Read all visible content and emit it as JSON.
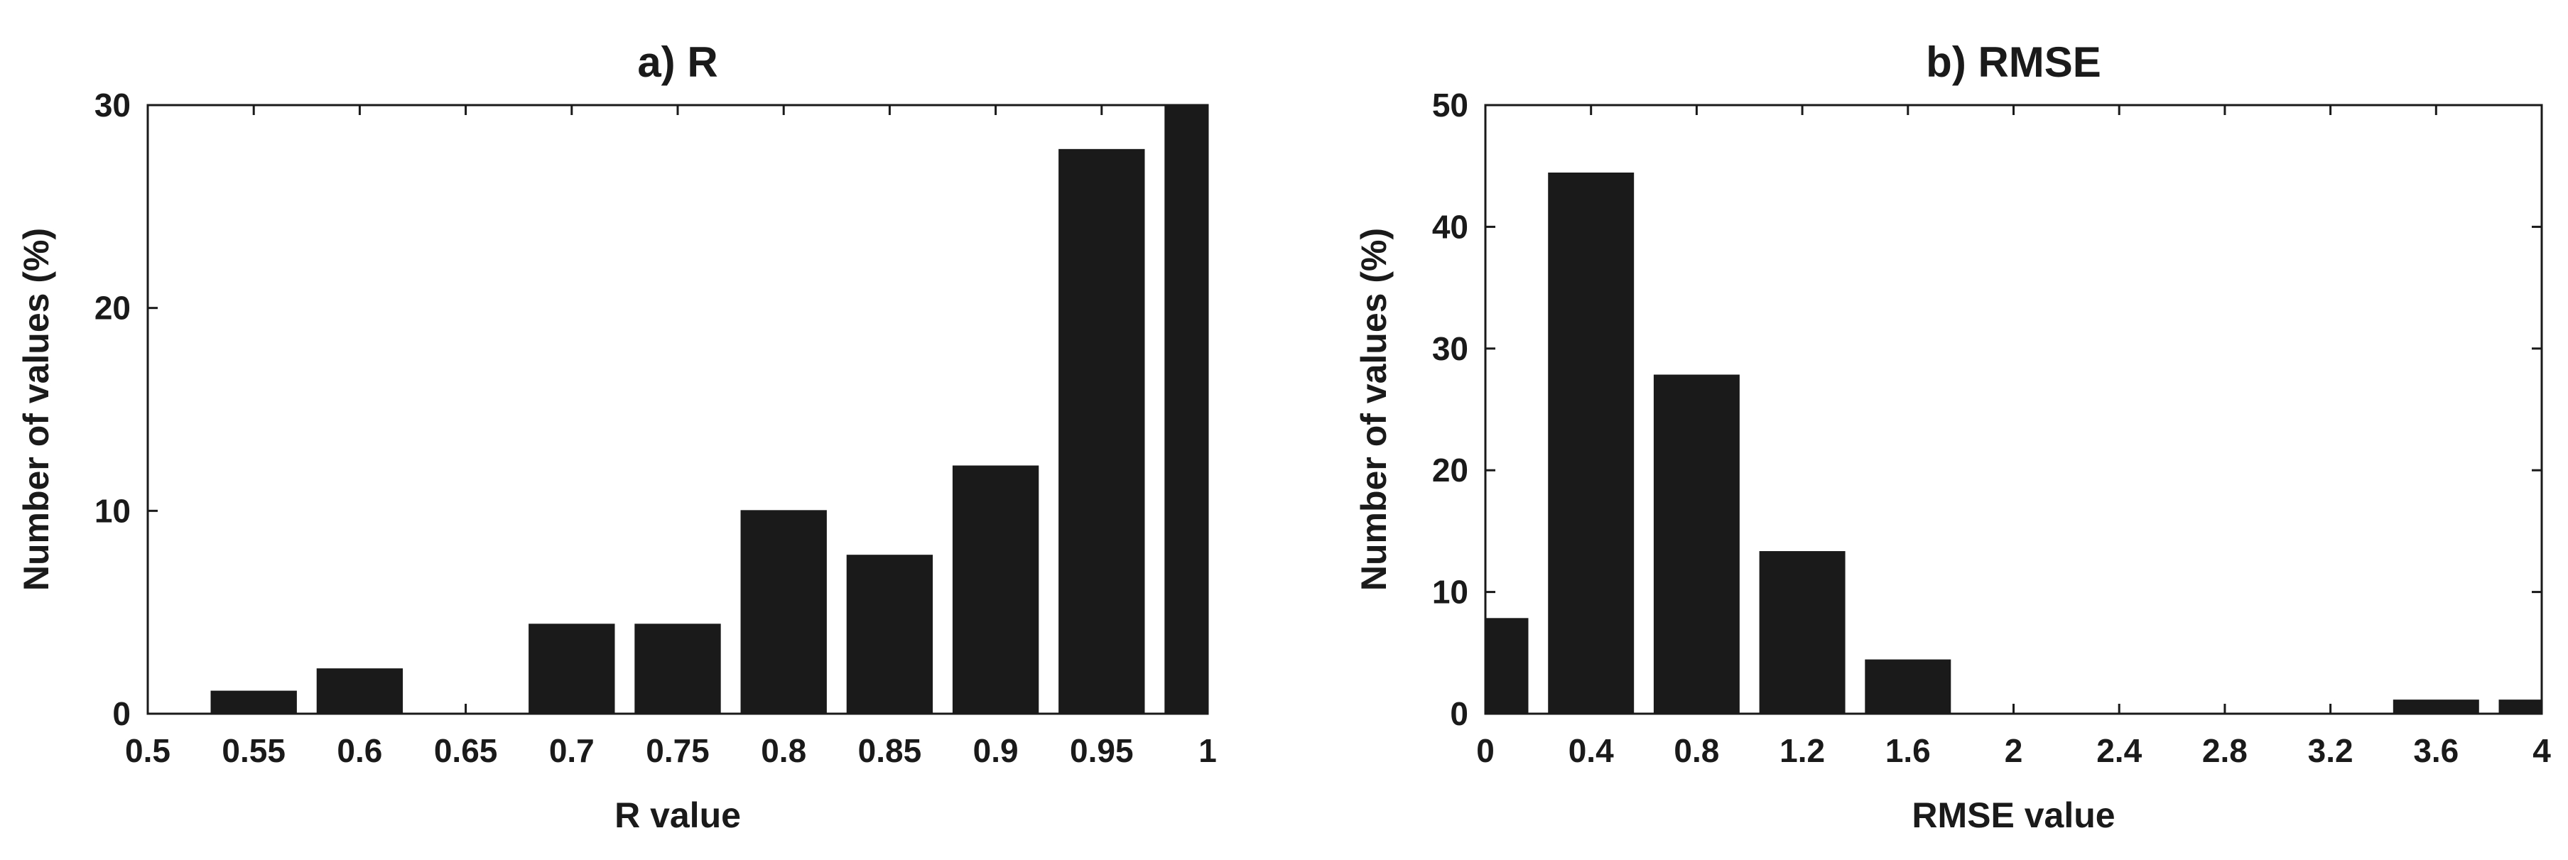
{
  "chart_data": [
    {
      "type": "bar",
      "title": "a) R",
      "xlabel": "R value",
      "ylabel": "Number of values (%)",
      "xlim": [
        0.5,
        1
      ],
      "ylim": [
        0,
        30
      ],
      "xticks": [
        0.5,
        0.55,
        0.6,
        0.65,
        0.7,
        0.75,
        0.8,
        0.85,
        0.9,
        0.95,
        1
      ],
      "xtick_labels": [
        "0.5",
        "0.55",
        "0.6",
        "0.65",
        "0.7",
        "0.75",
        "0.8",
        "0.85",
        "0.9",
        "0.95",
        "1"
      ],
      "yticks": [
        0,
        10,
        20,
        30
      ],
      "ytick_labels": [
        "0",
        "10",
        "20",
        "30"
      ],
      "bar_width": 0.04,
      "bar_centers": [
        0.55,
        0.6,
        0.65,
        0.7,
        0.75,
        0.8,
        0.85,
        0.9,
        0.95,
        1.0
      ],
      "values": [
        1.1,
        2.2,
        0,
        4.4,
        4.4,
        10.0,
        7.8,
        12.2,
        27.8,
        30.0
      ],
      "grid": false
    },
    {
      "type": "bar",
      "title": "b) RMSE",
      "xlabel": "RMSE value",
      "ylabel": "Number of values (%)",
      "xlim": [
        0,
        4
      ],
      "ylim": [
        0,
        50
      ],
      "xticks": [
        0,
        0.4,
        0.8,
        1.2,
        1.6,
        2,
        2.4,
        2.8,
        3.2,
        3.6,
        4
      ],
      "xtick_labels": [
        "0",
        "0.4",
        "0.8",
        "1.2",
        "1.6",
        "2",
        "2.4",
        "2.8",
        "3.2",
        "3.6",
        "4"
      ],
      "yticks": [
        0,
        10,
        20,
        30,
        40,
        50
      ],
      "ytick_labels": [
        "0",
        "10",
        "20",
        "30",
        "40",
        "50"
      ],
      "bar_width": 0.32,
      "bar_centers": [
        0.0,
        0.4,
        0.8,
        1.2,
        1.6,
        2.0,
        2.4,
        2.8,
        3.2,
        3.6,
        4.0
      ],
      "values": [
        7.8,
        44.4,
        27.8,
        13.3,
        4.4,
        0,
        0,
        0,
        0,
        1.1,
        1.1
      ],
      "grid": false
    }
  ]
}
